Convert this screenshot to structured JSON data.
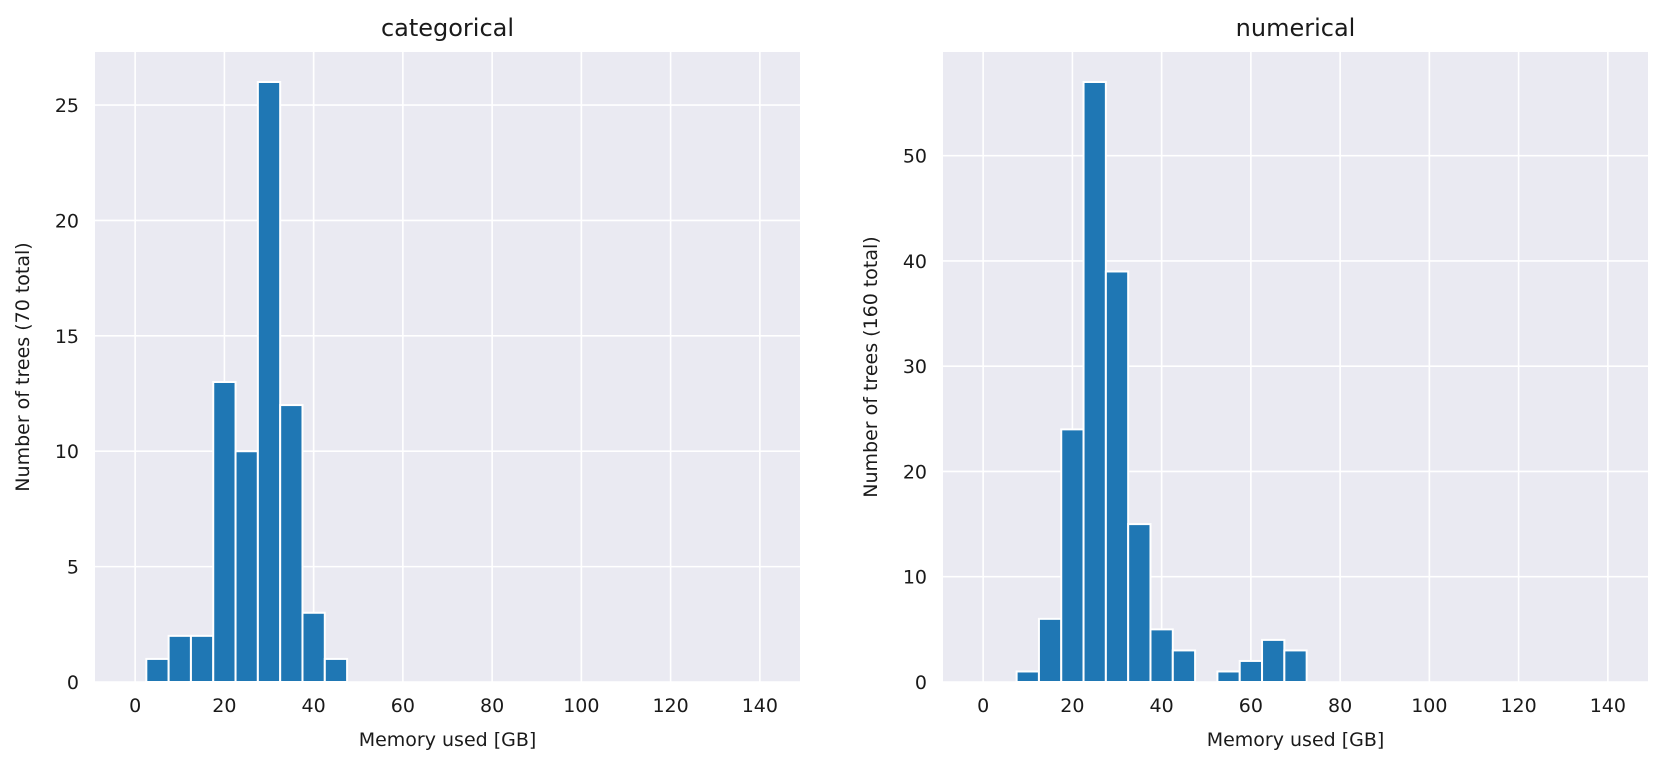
{
  "chart_data": [
    {
      "type": "bar",
      "title": "categorical",
      "xlabel": "Memory used [GB]",
      "ylabel": "Number of trees (70 total)",
      "xlim": [
        -9,
        149
      ],
      "ylim": [
        0,
        27.3
      ],
      "xticks": [
        "0",
        "20",
        "40",
        "60",
        "80",
        "100",
        "120",
        "140"
      ],
      "xtick_values": [
        0,
        20,
        40,
        60,
        80,
        100,
        120,
        140
      ],
      "yticks": [
        "0",
        "5",
        "10",
        "15",
        "20",
        "25"
      ],
      "ytick_values": [
        0,
        5,
        10,
        15,
        20,
        25
      ],
      "bins": [
        {
          "x0": 2.5,
          "x1": 7.5,
          "count": 1
        },
        {
          "x0": 7.5,
          "x1": 12.5,
          "count": 2
        },
        {
          "x0": 12.5,
          "x1": 17.5,
          "count": 2
        },
        {
          "x0": 17.5,
          "x1": 22.5,
          "count": 13
        },
        {
          "x0": 22.5,
          "x1": 27.5,
          "count": 10
        },
        {
          "x0": 27.5,
          "x1": 32.5,
          "count": 26
        },
        {
          "x0": 32.5,
          "x1": 37.5,
          "count": 12
        },
        {
          "x0": 37.5,
          "x1": 42.5,
          "count": 3
        },
        {
          "x0": 42.5,
          "x1": 47.5,
          "count": 1
        }
      ],
      "grid": true,
      "bar_color": "#1f77b4",
      "background_color": "#eaeaf2"
    },
    {
      "type": "bar",
      "title": "numerical",
      "xlabel": "Memory used [GB]",
      "ylabel": "Number of trees (160 total)",
      "xlim": [
        -9,
        149
      ],
      "ylim": [
        0,
        59.85
      ],
      "xticks": [
        "0",
        "20",
        "40",
        "60",
        "80",
        "100",
        "120",
        "140"
      ],
      "xtick_values": [
        0,
        20,
        40,
        60,
        80,
        100,
        120,
        140
      ],
      "yticks": [
        "0",
        "10",
        "20",
        "30",
        "40",
        "50"
      ],
      "ytick_values": [
        0,
        10,
        20,
        30,
        40,
        50
      ],
      "bins": [
        {
          "x0": 7.5,
          "x1": 12.5,
          "count": 1
        },
        {
          "x0": 12.5,
          "x1": 17.5,
          "count": 6
        },
        {
          "x0": 17.5,
          "x1": 22.5,
          "count": 24
        },
        {
          "x0": 22.5,
          "x1": 27.5,
          "count": 57
        },
        {
          "x0": 27.5,
          "x1": 32.5,
          "count": 39
        },
        {
          "x0": 32.5,
          "x1": 37.5,
          "count": 15
        },
        {
          "x0": 37.5,
          "x1": 42.5,
          "count": 5
        },
        {
          "x0": 42.5,
          "x1": 47.5,
          "count": 3
        },
        {
          "x0": 52.5,
          "x1": 57.5,
          "count": 1
        },
        {
          "x0": 57.5,
          "x1": 62.5,
          "count": 2
        },
        {
          "x0": 62.5,
          "x1": 67.5,
          "count": 4
        },
        {
          "x0": 67.5,
          "x1": 72.5,
          "count": 3
        }
      ],
      "grid": true,
      "bar_color": "#1f77b4",
      "background_color": "#eaeaf2"
    }
  ]
}
